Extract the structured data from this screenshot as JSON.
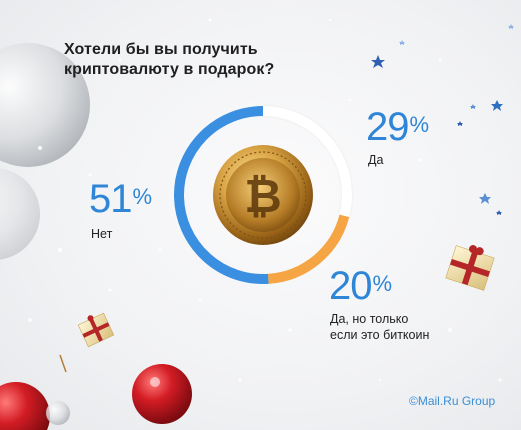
{
  "title_line1": "Хотели бы вы получить",
  "title_line2": "криптовалюту в подарок?",
  "colors": {
    "net": "#3b8fe0",
    "da": "#ffffff",
    "bitcoin": "#f5a544",
    "text_blue": "#2f86d6"
  },
  "copyright": "©Mail.Ru Group",
  "chart_data": {
    "type": "pie",
    "title": "Хотели бы вы получить криптовалюту в подарок?",
    "slices": [
      {
        "label": "Да",
        "value": 29,
        "display": "29",
        "color": "#ffffff"
      },
      {
        "label": "Да, но только если это биткоин",
        "value": 20,
        "display": "20",
        "color": "#f5a544"
      },
      {
        "label": "Нет",
        "value": 51,
        "display": "51",
        "color": "#3b8fe0"
      }
    ],
    "unit": "%",
    "center_image": "bitcoin-coin-icon"
  },
  "labels": {
    "da_line1": "Да",
    "bitcoin_line1": "Да, но только",
    "bitcoin_line2": "если это биткоин",
    "net_line1": "Нет",
    "percent_sign": "%"
  }
}
